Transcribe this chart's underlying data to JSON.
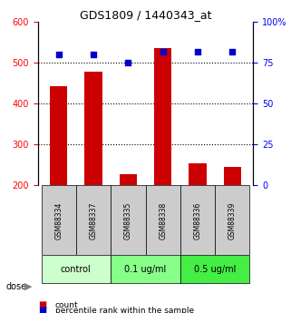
{
  "title": "GDS1809 / 1440343_at",
  "samples": [
    "GSM88334",
    "GSM88337",
    "GSM88335",
    "GSM88338",
    "GSM88336",
    "GSM88339"
  ],
  "counts": [
    443,
    478,
    228,
    537,
    255,
    246
  ],
  "percentiles": [
    80,
    80,
    75,
    82,
    82,
    82
  ],
  "ylim_left": [
    200,
    600
  ],
  "ylim_right": [
    0,
    100
  ],
  "yticks_left": [
    200,
    300,
    400,
    500,
    600
  ],
  "yticks_right": [
    0,
    25,
    50,
    75,
    100
  ],
  "bar_color": "#cc0000",
  "dot_color": "#0000cc",
  "groups": [
    {
      "label": "control",
      "samples": [
        "GSM88334",
        "GSM88337"
      ],
      "color": "#ccffcc"
    },
    {
      "label": "0.1 ug/ml",
      "samples": [
        "GSM88335",
        "GSM88338"
      ],
      "color": "#88ff88"
    },
    {
      "label": "0.5 ug/ml",
      "samples": [
        "GSM88336",
        "GSM88339"
      ],
      "color": "#44ee44"
    }
  ],
  "dose_label": "dose",
  "legend_count": "count",
  "legend_percentile": "percentile rank within the sample",
  "sample_box_color": "#cccccc",
  "gridline_style": "dotted"
}
